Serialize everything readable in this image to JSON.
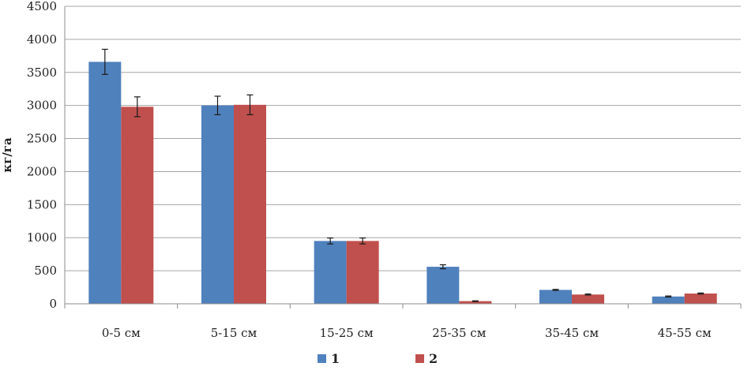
{
  "chart_data": {
    "type": "bar",
    "title": "",
    "xlabel": "",
    "ylabel": "кг/га",
    "ylim": [
      0,
      4500
    ],
    "yticks": [
      0,
      500,
      1000,
      1500,
      2000,
      2500,
      3000,
      3500,
      4000,
      4500
    ],
    "grid": true,
    "legend_position": "bottom",
    "categories": [
      "0-5 см",
      "5-15 см",
      "15-25 см",
      "25-35 см",
      "35-45 см",
      "45-55 см"
    ],
    "series": [
      {
        "name": "1",
        "color": "#4f81bd",
        "values": [
          3660,
          3000,
          950,
          560,
          210,
          110
        ],
        "errors": [
          190,
          140,
          45,
          30,
          8,
          8
        ]
      },
      {
        "name": "2",
        "color": "#c0504d",
        "values": [
          2980,
          3010,
          950,
          40,
          140,
          155
        ],
        "errors": [
          150,
          150,
          45,
          5,
          8,
          8
        ]
      }
    ]
  }
}
